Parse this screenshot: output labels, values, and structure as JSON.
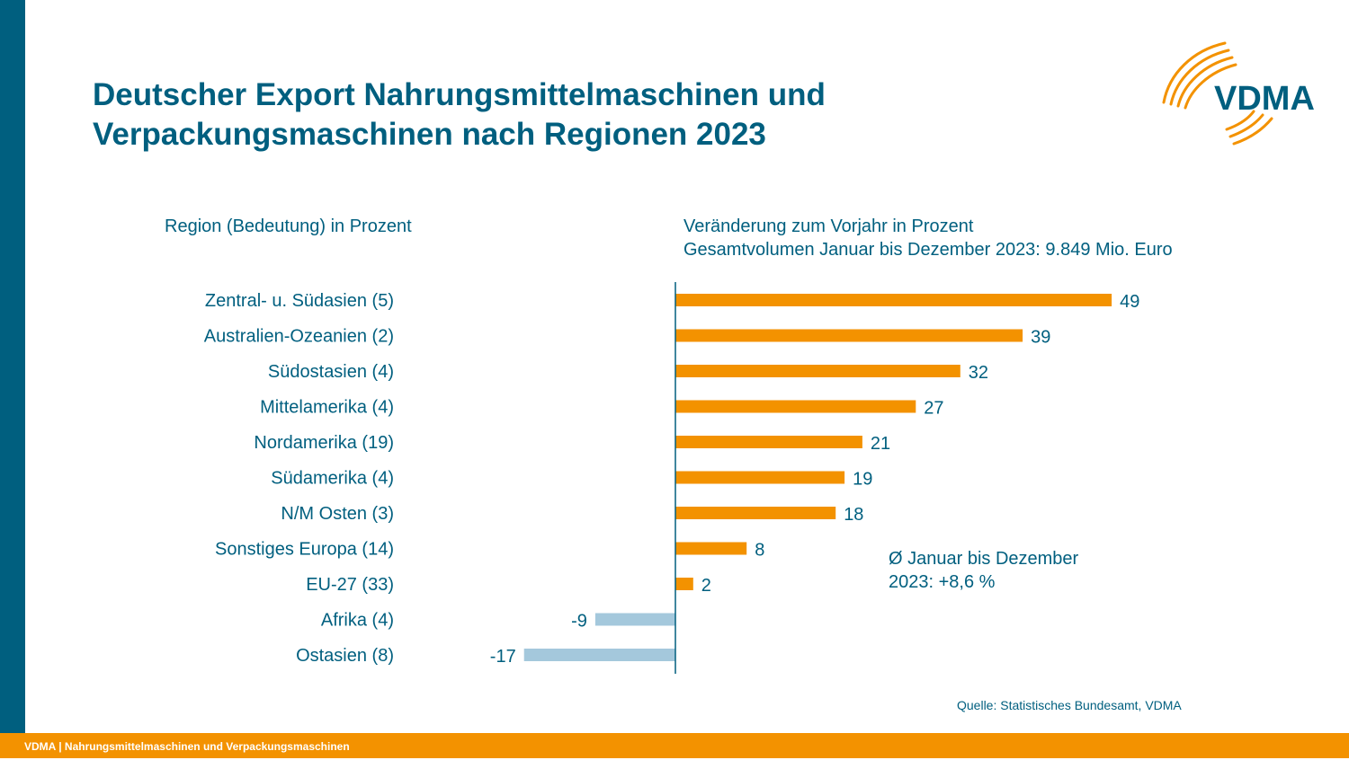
{
  "title_line1": "Deutscher Export Nahrungsmittelmaschinen und",
  "title_line2": "Verpackungsmaschinen nach Regionen 2023",
  "left_header": "Region (Bedeutung) in Prozent",
  "right_header_line1": "Veränderung zum Vorjahr in Prozent",
  "right_header_line2": "Gesamtvolumen Januar bis Dezember 2023: 9.849 Mio. Euro",
  "note_line1": "Ø Januar bis Dezember",
  "note_line2": "2023: +8,6 %",
  "source": "Quelle: Statistisches Bundesamt, VDMA",
  "footer": "VDMA | Nahrungsmittelmaschinen und Verpackungsmaschinen",
  "logo_text": "VDMA",
  "colors": {
    "primary": "#005f7f",
    "accent": "#f39200",
    "negative": "#a4c8dc"
  },
  "chart_data": {
    "type": "bar",
    "orientation": "horizontal",
    "categories": [
      "Zentral- u. Südasien (5)",
      "Australien-Ozeanien (2)",
      "Südostasien (4)",
      "Mittelamerika (4)",
      "Nordamerika (19)",
      "Südamerika (4)",
      "N/M Osten (3)",
      "Sonstiges Europa (14)",
      "EU-27 (33)",
      "Afrika (4)",
      "Ostasien (8)"
    ],
    "values": [
      49,
      39,
      32,
      27,
      21,
      19,
      18,
      8,
      2,
      -9,
      -17
    ],
    "positive_color": "#f39200",
    "negative_color": "#a4c8dc",
    "xlim": [
      -17,
      49
    ]
  }
}
